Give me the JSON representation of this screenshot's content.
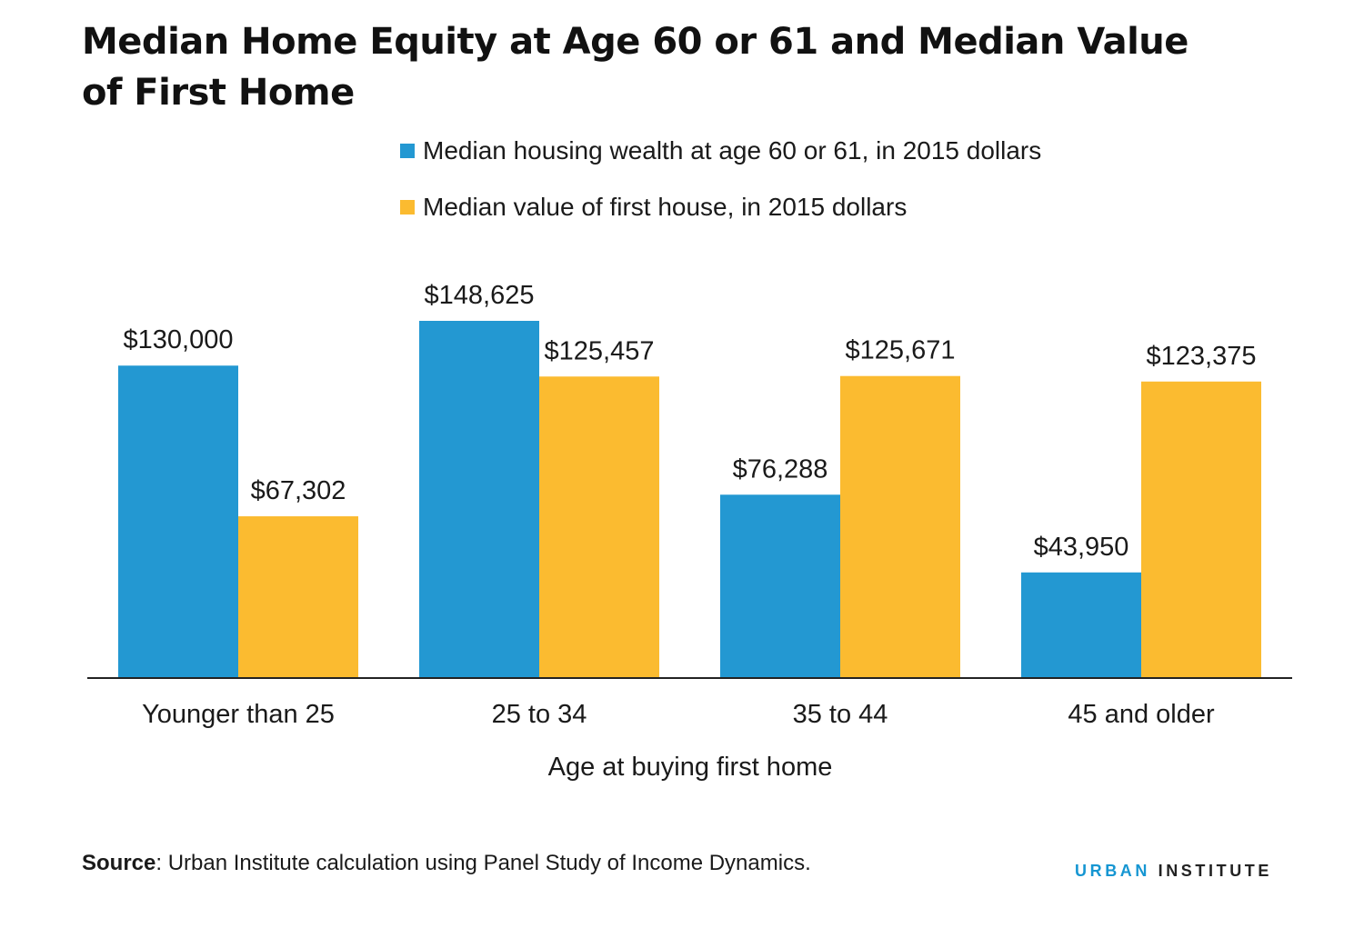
{
  "chart_data": {
    "type": "bar",
    "title": "Median Home Equity at Age 60 or 61 and Median Value of First Home",
    "xlabel": "Age at buying first home",
    "ylabel": "",
    "categories": [
      "Younger than 25",
      "25 to 34",
      "35 to 44",
      "45 and older"
    ],
    "series": [
      {
        "name": "Median housing wealth at age 60 or 61, in 2015 dollars",
        "color": "#2398d2",
        "values": [
          130000,
          148625,
          76288,
          43950
        ],
        "labels": [
          "$130,000",
          "$148,625",
          "$76,288",
          "$43,950"
        ]
      },
      {
        "name": "Median value of first house, in 2015 dollars",
        "color": "#fbbb30",
        "values": [
          67302,
          125457,
          125671,
          123375
        ],
        "labels": [
          "$67,302",
          "$125,457",
          "$125,671",
          "$123,375"
        ]
      }
    ],
    "ylim": [
      0,
      148625
    ],
    "grid": false,
    "legend_position": "top"
  },
  "footer": {
    "source_label": "Source",
    "source_text": ": Urban Institute calculation using Panel Study of Income Dynamics."
  },
  "logo": {
    "word1": "URBAN",
    "word2": "INSTITUTE"
  }
}
